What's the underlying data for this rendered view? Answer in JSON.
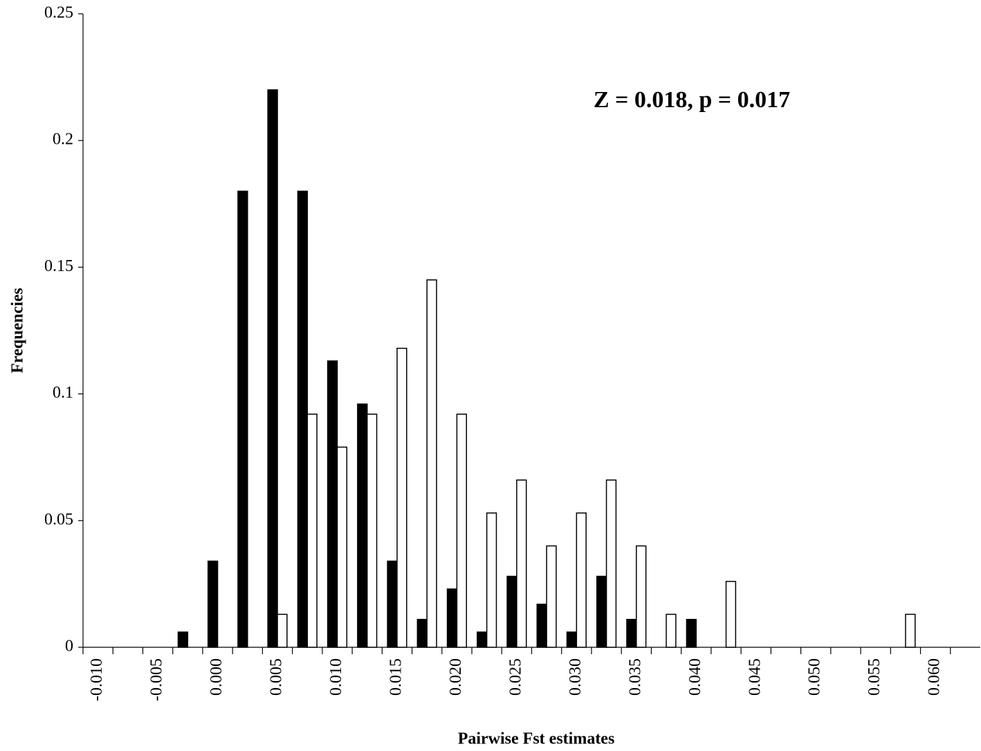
{
  "chart_data": {
    "type": "bar",
    "x_label": "Pairwise Fst estimates",
    "y_label": "Frequencies",
    "annotation": "Z = 0.018, p = 0.017",
    "categories": [
      "-0.010",
      null,
      "-0.005",
      null,
      "0.000",
      null,
      "0.005",
      null,
      "0.010",
      null,
      "0.015",
      null,
      "0.020",
      null,
      "0.025",
      null,
      "0.030",
      null,
      "0.035",
      null,
      "0.040",
      null,
      "0.045",
      null,
      "0.050",
      null,
      "0.055",
      null,
      "0.060",
      null
    ],
    "series": [
      {
        "color": "#000000",
        "values": [
          0,
          0,
          0,
          0.006,
          0.034,
          0.18,
          0.22,
          0.18,
          0.113,
          0.096,
          0.034,
          0.011,
          0.023,
          0.006,
          0.028,
          0.017,
          0.006,
          0.028,
          0.011,
          0,
          0.011,
          0,
          0,
          0,
          0,
          0,
          0,
          0,
          0,
          0
        ]
      },
      {
        "color": "#ffffff",
        "values": [
          0,
          0,
          0,
          0,
          0,
          0,
          0.013,
          0.092,
          0.079,
          0.092,
          0.118,
          0.145,
          0.092,
          0.053,
          0.066,
          0.04,
          0.053,
          0.066,
          0.04,
          0.013,
          0,
          0.026,
          0,
          0,
          0,
          0,
          0,
          0.013,
          0,
          0
        ]
      }
    ],
    "ylim": [
      0,
      0.25
    ],
    "yticks": [
      0,
      0.05,
      0.1,
      0.15,
      0.2,
      0.25
    ],
    "grid": false
  }
}
